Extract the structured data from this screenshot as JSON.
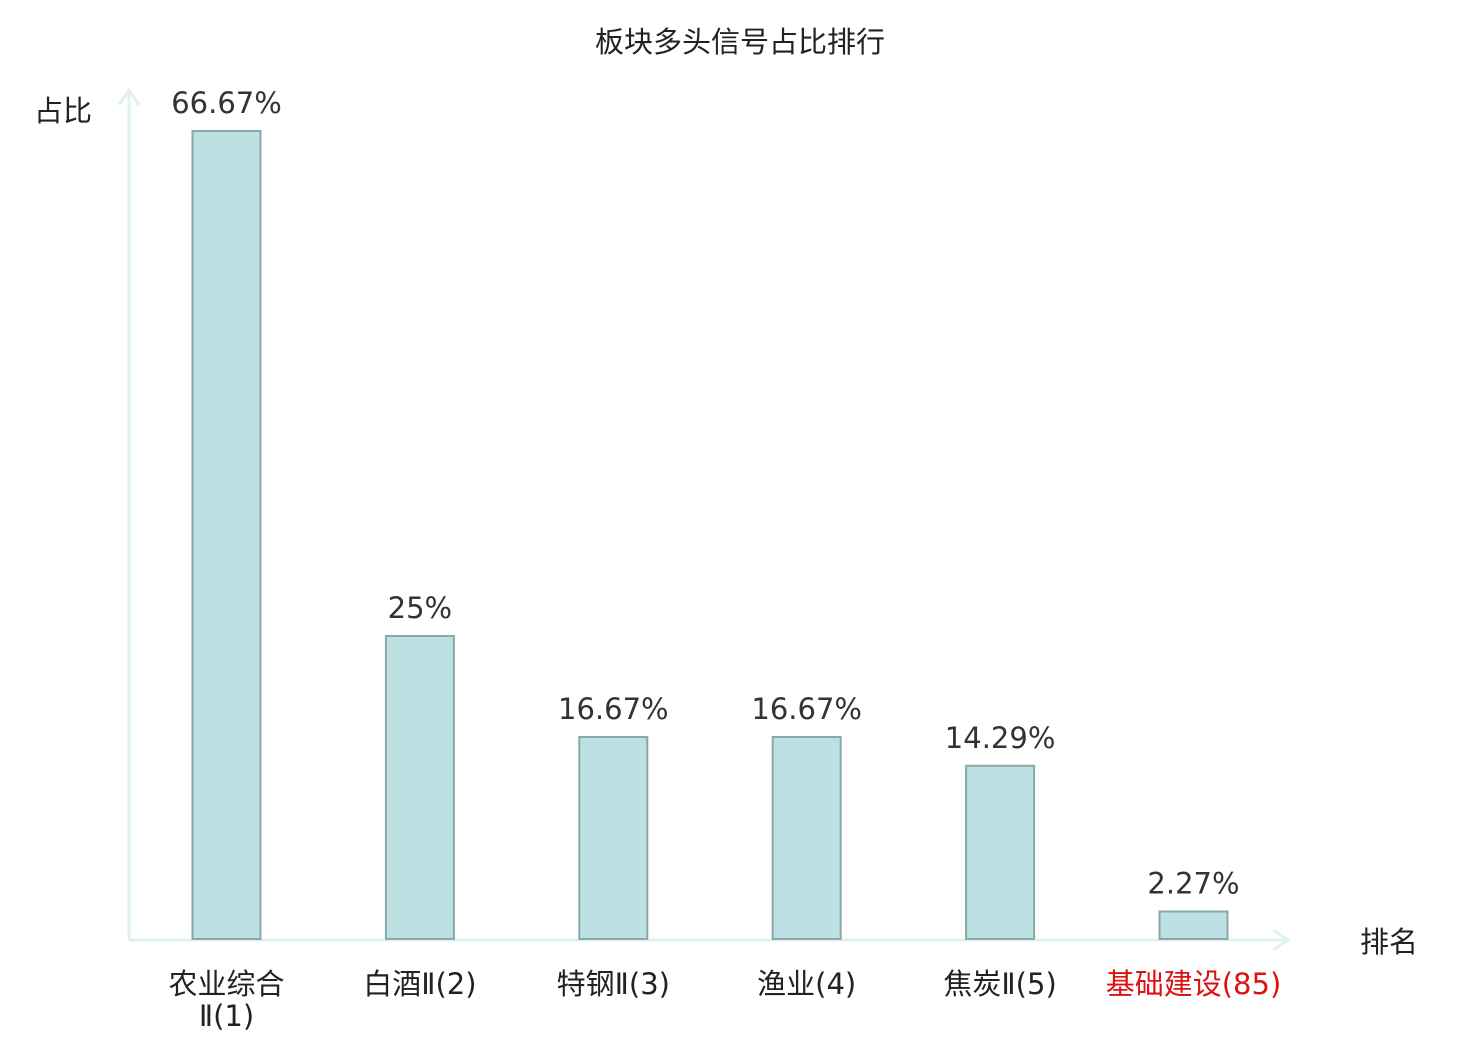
{
  "chart_data": {
    "type": "bar",
    "title": "板块多头信号占比排行",
    "ylabel": "占比",
    "xlabel": "排名",
    "ylim": [
      0,
      70
    ],
    "grid": false,
    "categories": [
      "农业综合Ⅱ(1)",
      "白酒Ⅱ(2)",
      "特钢Ⅱ(3)",
      "渔业(4)",
      "焦炭Ⅱ(5)",
      "基础建设(85)"
    ],
    "category_lines": [
      [
        "农业综合",
        "Ⅱ(1)"
      ],
      [
        "白酒Ⅱ(2)"
      ],
      [
        "特钢Ⅱ(3)"
      ],
      [
        "渔业(4)"
      ],
      [
        "焦炭Ⅱ(5)"
      ],
      [
        "基础建设(85)"
      ]
    ],
    "values": [
      66.67,
      25,
      16.67,
      16.67,
      14.29,
      2.27
    ],
    "value_labels": [
      "66.67%",
      "25%",
      "16.67%",
      "16.67%",
      "14.29%",
      "2.27%"
    ],
    "highlight_index": 5
  },
  "colors": {
    "bar_fill": "#bde0e3",
    "bar_stroke": "#8aa7a9",
    "axis": "#e0f2f0",
    "text": "#222222",
    "value_text": "#333333",
    "highlight_text": "#dd1111"
  }
}
